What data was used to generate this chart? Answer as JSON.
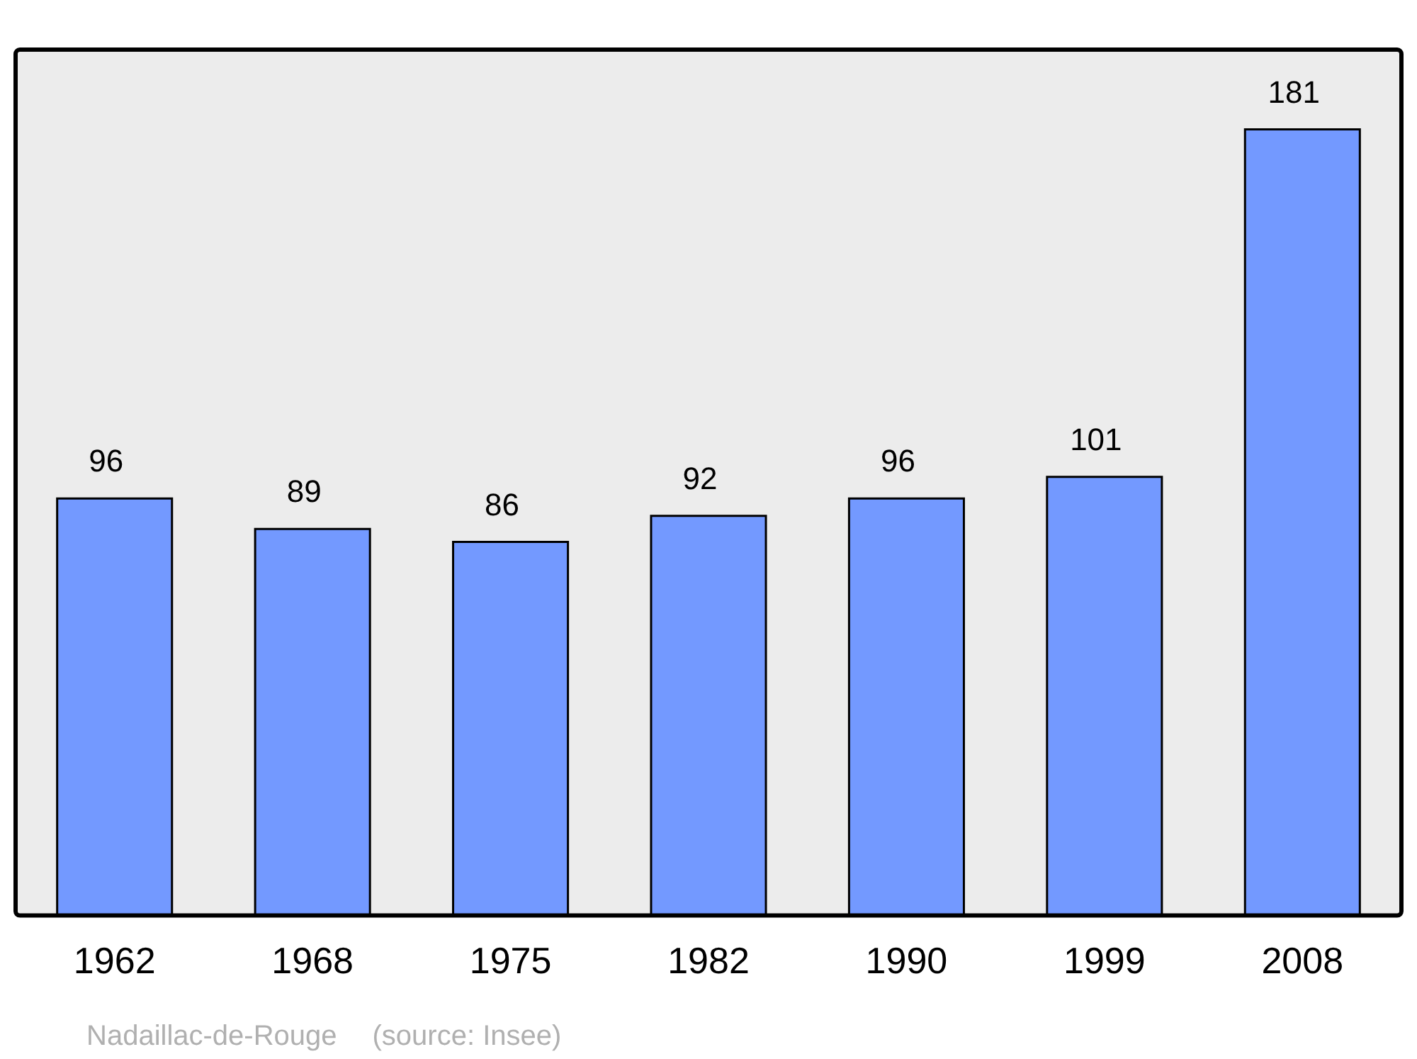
{
  "chart_data": {
    "type": "bar",
    "categories": [
      "1962",
      "1968",
      "1975",
      "1982",
      "1990",
      "1999",
      "2008"
    ],
    "values": [
      96,
      89,
      86,
      92,
      96,
      101,
      181
    ],
    "color": "#7399ff",
    "data_labels": true,
    "grid": false,
    "legend": false,
    "annotations": [
      "Nadaillac-de-Rouge",
      "(source: Insee)"
    ]
  }
}
